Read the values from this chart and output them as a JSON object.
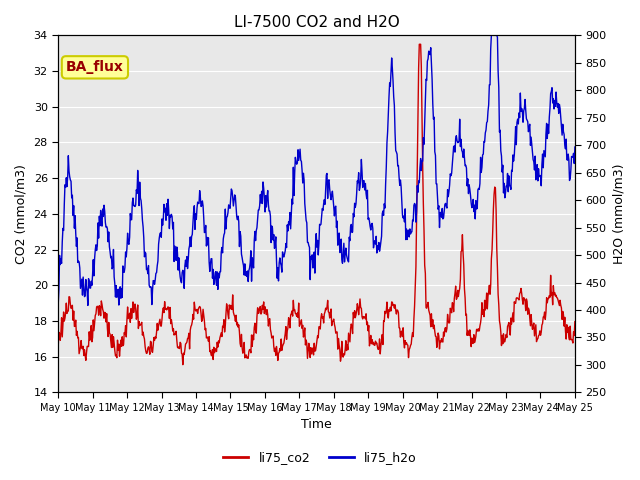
{
  "title": "LI-7500 CO2 and H2O",
  "xlabel": "Time",
  "ylabel_left": "CO2 (mmol/m3)",
  "ylabel_right": "H2O (mmol/m3)",
  "ylim_left": [
    14,
    34
  ],
  "ylim_right": [
    250,
    900
  ],
  "yticks_left": [
    14,
    16,
    18,
    20,
    22,
    24,
    26,
    28,
    30,
    32,
    34
  ],
  "yticks_right": [
    250,
    300,
    350,
    400,
    450,
    500,
    550,
    600,
    650,
    700,
    750,
    800,
    850,
    900
  ],
  "xtick_labels": [
    "May 10",
    "May 11",
    "May 12",
    "May 13",
    "May 14",
    "May 15",
    "May 16",
    "May 17",
    "May 18",
    "May 19",
    "May 20",
    "May 21",
    "May 22",
    "May 23",
    "May 24",
    "May 25"
  ],
  "color_co2": "#cc0000",
  "color_h2o": "#0000cc",
  "legend_label_co2": "li75_co2",
  "legend_label_h2o": "li75_h2o",
  "annotation_text": "BA_flux",
  "annotation_bg": "#ffff99",
  "annotation_border": "#cccc00",
  "annotation_text_color": "#990000",
  "grid_color": "#ffffff",
  "bg_color": "#e8e8e8",
  "fig_bg": "#ffffff",
  "title_fontsize": 11,
  "axis_label_fontsize": 9,
  "tick_fontsize": 8,
  "legend_fontsize": 9,
  "linewidth": 1.0
}
